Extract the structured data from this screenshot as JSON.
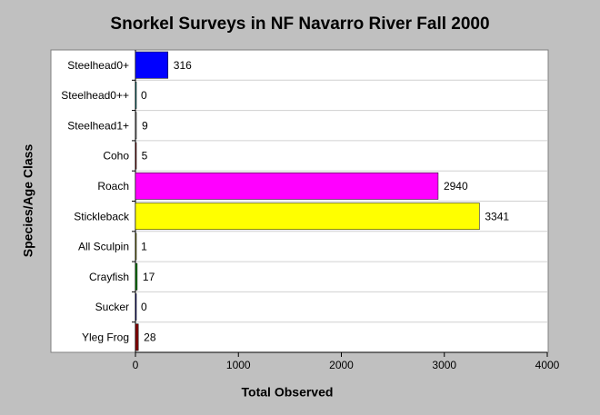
{
  "chart_data": {
    "type": "bar",
    "orientation": "horizontal",
    "title": "Snorkel Surveys in NF Navarro River Fall 2000",
    "x_label": "Total Observed",
    "y_label": "Species/Age Class",
    "categories": [
      "Steelhead0+",
      "Steelhead0++",
      "Steelhead1+",
      "Coho",
      "Roach",
      "Stickleback",
      "All Sculpin",
      "Crayfish",
      "Sucker",
      "Yleg Frog"
    ],
    "values": [
      316,
      0,
      9,
      5,
      2940,
      3341,
      1,
      17,
      0,
      28
    ],
    "colors": [
      "#0000ff",
      "#008080",
      "#808080",
      "#800000",
      "#ff00ff",
      "#ffff00",
      "#808000",
      "#008000",
      "#000080",
      "#800000"
    ],
    "xlim": [
      0,
      4000
    ],
    "xticks": [
      0,
      1000,
      2000,
      3000,
      4000
    ],
    "grid": true
  }
}
